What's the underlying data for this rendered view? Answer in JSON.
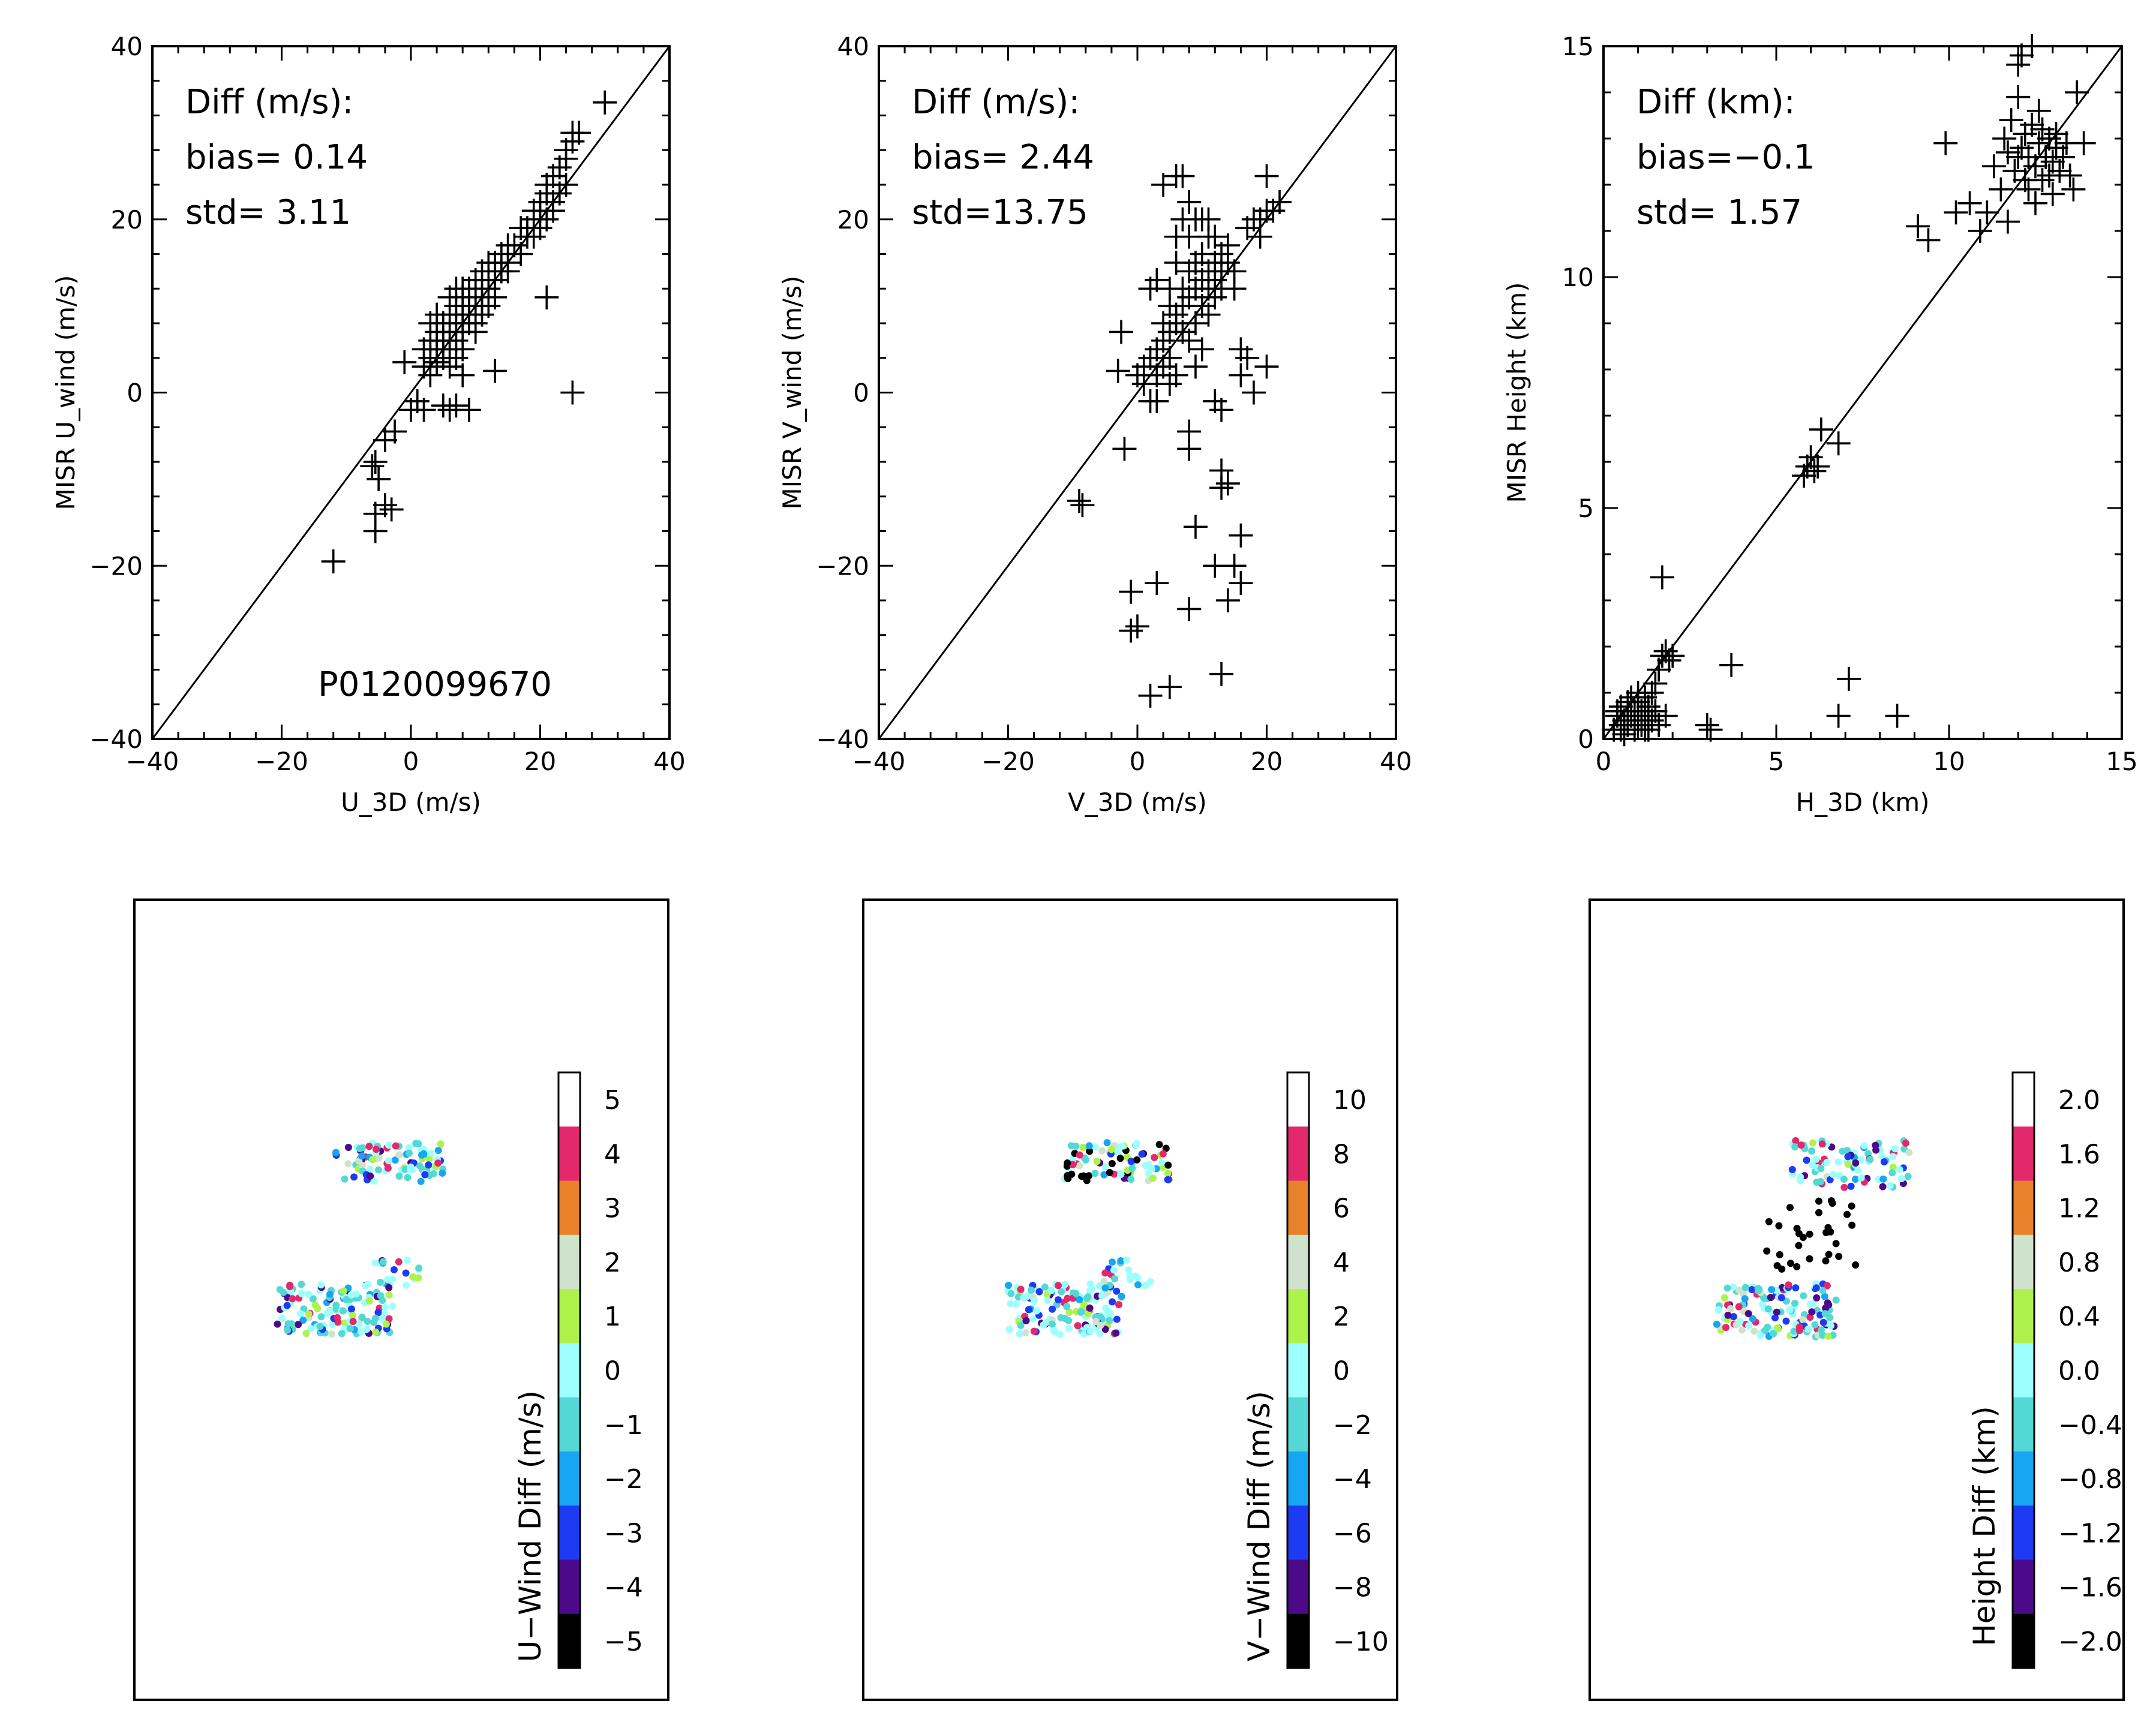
{
  "chart_data": [
    {
      "type": "scatter",
      "id": "u-wind-scatter",
      "xlabel": "U_3D (m/s)",
      "ylabel": "MISR U_wind (m/s)",
      "xlim": [
        -40,
        40
      ],
      "ylim": [
        -40,
        40
      ],
      "xticks": [
        -40,
        -20,
        0,
        20,
        40
      ],
      "yticks": [
        -40,
        -20,
        0,
        20,
        40
      ],
      "xtick_labels": [
        "−40",
        "−20",
        "0",
        "20",
        "40"
      ],
      "ytick_labels": [
        "−40",
        "−20",
        "0",
        "20",
        "40"
      ],
      "reference_line": "1:1",
      "annotations": [
        "Diff (m/s):",
        "bias= 0.14",
        "std= 3.11"
      ],
      "footer_label": "P0120099670",
      "points": [
        [
          -12,
          -19.5
        ],
        [
          -5.5,
          -16
        ],
        [
          -5.5,
          -14
        ],
        [
          -4,
          -13
        ],
        [
          -3,
          -13.5
        ],
        [
          -5,
          -10
        ],
        [
          -6,
          -8.5
        ],
        [
          -5.5,
          -8
        ],
        [
          -4,
          -5.5
        ],
        [
          -2.5,
          -4.5
        ],
        [
          -1,
          3.5
        ],
        [
          0,
          -2
        ],
        [
          1,
          -1
        ],
        [
          2,
          -2
        ],
        [
          2,
          3
        ],
        [
          3,
          2
        ],
        [
          3,
          6
        ],
        [
          3,
          5
        ],
        [
          4,
          3.5
        ],
        [
          4,
          5
        ],
        [
          4,
          7
        ],
        [
          5,
          4
        ],
        [
          5,
          6
        ],
        [
          5,
          8
        ],
        [
          5,
          -1.5
        ],
        [
          6,
          5
        ],
        [
          6,
          7
        ],
        [
          6,
          9
        ],
        [
          6,
          3
        ],
        [
          6,
          -2
        ],
        [
          7,
          6
        ],
        [
          7,
          8
        ],
        [
          7,
          10
        ],
        [
          7,
          4
        ],
        [
          7,
          -1.5
        ],
        [
          8,
          7
        ],
        [
          8,
          9
        ],
        [
          8,
          11
        ],
        [
          8,
          5
        ],
        [
          8,
          2
        ],
        [
          9,
          9
        ],
        [
          9,
          10
        ],
        [
          9,
          12
        ],
        [
          9,
          8
        ],
        [
          9,
          -2
        ],
        [
          10,
          10
        ],
        [
          10,
          11
        ],
        [
          10,
          13
        ],
        [
          10,
          8
        ],
        [
          11,
          10
        ],
        [
          11,
          12
        ],
        [
          11,
          14
        ],
        [
          12,
          12
        ],
        [
          12,
          13
        ],
        [
          12,
          10
        ],
        [
          13,
          13
        ],
        [
          13,
          15
        ],
        [
          14,
          14
        ],
        [
          14,
          16
        ],
        [
          15,
          15
        ],
        [
          15,
          14
        ],
        [
          16,
          17
        ],
        [
          17,
          16
        ],
        [
          18,
          18
        ],
        [
          18,
          19
        ],
        [
          19,
          20
        ],
        [
          19,
          21
        ],
        [
          20,
          21
        ],
        [
          20,
          22
        ],
        [
          21,
          23
        ],
        [
          21,
          24
        ],
        [
          22,
          22
        ],
        [
          22,
          25
        ],
        [
          23,
          26
        ],
        [
          24,
          27
        ],
        [
          24,
          28
        ],
        [
          25,
          29
        ],
        [
          25,
          30
        ],
        [
          26,
          30
        ],
        [
          21,
          11
        ],
        [
          13,
          2.5
        ],
        [
          25,
          0
        ],
        [
          30,
          33.5
        ],
        [
          2,
          5
        ],
        [
          4,
          9
        ],
        [
          6,
          11
        ],
        [
          3,
          8
        ],
        [
          11,
          9
        ],
        [
          12,
          15
        ],
        [
          8,
          12
        ],
        [
          7,
          12
        ],
        [
          10,
          7
        ],
        [
          13,
          11
        ],
        [
          15,
          17
        ],
        [
          17,
          19
        ],
        [
          19,
          18
        ],
        [
          20,
          19
        ],
        [
          21,
          20
        ],
        [
          22,
          21
        ],
        [
          23,
          23
        ],
        [
          24,
          24
        ],
        [
          3,
          4
        ],
        [
          5,
          5
        ],
        [
          9,
          11
        ],
        [
          10,
          12
        ],
        [
          11,
          11
        ],
        [
          4,
          6
        ],
        [
          6,
          6
        ],
        [
          8,
          8
        ]
      ]
    },
    {
      "type": "scatter",
      "id": "v-wind-scatter",
      "xlabel": "V_3D (m/s)",
      "ylabel": "MISR V_wind (m/s)",
      "xlim": [
        -40,
        40
      ],
      "ylim": [
        -40,
        40
      ],
      "xticks": [
        -40,
        -20,
        0,
        20,
        40
      ],
      "yticks": [
        -40,
        -20,
        0,
        20,
        40
      ],
      "xtick_labels": [
        "−40",
        "−20",
        "0",
        "20",
        "40"
      ],
      "ytick_labels": [
        "−40",
        "−20",
        "0",
        "20",
        "40"
      ],
      "reference_line": "1:1",
      "annotations": [
        "Diff (m/s):",
        "bias= 2.44",
        "std=13.75"
      ],
      "points": [
        [
          -9,
          -12.5
        ],
        [
          -8.5,
          -13
        ],
        [
          -2,
          -6.5
        ],
        [
          -2.5,
          7
        ],
        [
          -3,
          2.5
        ],
        [
          -1,
          -23
        ],
        [
          -1,
          -27.5
        ],
        [
          0,
          -27
        ],
        [
          3,
          -22
        ],
        [
          2,
          -35
        ],
        [
          5,
          -34
        ],
        [
          8,
          -25
        ],
        [
          13,
          -32.5
        ],
        [
          14,
          -24
        ],
        [
          16,
          -22
        ],
        [
          15,
          -20
        ],
        [
          12,
          -20
        ],
        [
          16,
          -16.5
        ],
        [
          13,
          -11
        ],
        [
          14,
          -10.5
        ],
        [
          13,
          -9
        ],
        [
          9,
          -15.5
        ],
        [
          8,
          -6.5
        ],
        [
          8,
          -4.5
        ],
        [
          12,
          -1
        ],
        [
          13,
          -2
        ],
        [
          18,
          0
        ],
        [
          17,
          4
        ],
        [
          20,
          3
        ],
        [
          16,
          5
        ],
        [
          16,
          2
        ],
        [
          0,
          2
        ],
        [
          1,
          3
        ],
        [
          1,
          1
        ],
        [
          2,
          4
        ],
        [
          2,
          -1
        ],
        [
          3,
          5
        ],
        [
          3,
          2
        ],
        [
          3,
          -1
        ],
        [
          4,
          6
        ],
        [
          4,
          8
        ],
        [
          4,
          3
        ],
        [
          5,
          7
        ],
        [
          5,
          10
        ],
        [
          5,
          12
        ],
        [
          5,
          4
        ],
        [
          6,
          8
        ],
        [
          6,
          15
        ],
        [
          6,
          18
        ],
        [
          6,
          9
        ],
        [
          7,
          10
        ],
        [
          7,
          12
        ],
        [
          7,
          20
        ],
        [
          7,
          25
        ],
        [
          7,
          7
        ],
        [
          8,
          11
        ],
        [
          8,
          14
        ],
        [
          8,
          18
        ],
        [
          8,
          22
        ],
        [
          8,
          6
        ],
        [
          9,
          12
        ],
        [
          9,
          15
        ],
        [
          9,
          8
        ],
        [
          9,
          3
        ],
        [
          10,
          13
        ],
        [
          10,
          16
        ],
        [
          10,
          10
        ],
        [
          10,
          5
        ],
        [
          11,
          12
        ],
        [
          11,
          14
        ],
        [
          11,
          18
        ],
        [
          11,
          9
        ],
        [
          12,
          15
        ],
        [
          12,
          11
        ],
        [
          12,
          13
        ],
        [
          13,
          14
        ],
        [
          13,
          16
        ],
        [
          13,
          12
        ],
        [
          14,
          15
        ],
        [
          14,
          17
        ],
        [
          15,
          14
        ],
        [
          15,
          12
        ],
        [
          17,
          19
        ],
        [
          18,
          20
        ],
        [
          19,
          20
        ],
        [
          20,
          25
        ],
        [
          21,
          21
        ],
        [
          22,
          22
        ],
        [
          19,
          18
        ],
        [
          20,
          21
        ],
        [
          4,
          24
        ],
        [
          6,
          25
        ],
        [
          3,
          13
        ],
        [
          2,
          12
        ],
        [
          5,
          1
        ],
        [
          6,
          2
        ],
        [
          10,
          20
        ],
        [
          12,
          18
        ],
        [
          11,
          20
        ],
        [
          9,
          20
        ]
      ]
    },
    {
      "type": "scatter",
      "id": "height-scatter",
      "xlabel": "H_3D (km)",
      "ylabel": "MISR Height (km)",
      "xlim": [
        0,
        15
      ],
      "ylim": [
        0,
        15
      ],
      "xticks": [
        0,
        5,
        10,
        15
      ],
      "yticks": [
        0,
        5,
        10,
        15
      ],
      "xtick_labels": [
        "0",
        "5",
        "10",
        "15"
      ],
      "ytick_labels": [
        "0",
        "5",
        "10",
        "15"
      ],
      "reference_line": "1:1",
      "annotations": [
        "Diff (km):",
        "bias=−0.1",
        "std= 1.57"
      ],
      "points": [
        [
          0.3,
          0.2
        ],
        [
          0.4,
          0.5
        ],
        [
          0.5,
          0.3
        ],
        [
          0.5,
          0.7
        ],
        [
          0.6,
          0.4
        ],
        [
          0.6,
          0.1
        ],
        [
          0.7,
          0.6
        ],
        [
          0.7,
          0.3
        ],
        [
          0.8,
          0.5
        ],
        [
          0.8,
          0.9
        ],
        [
          0.9,
          0.2
        ],
        [
          0.9,
          0.6
        ],
        [
          1.0,
          0.4
        ],
        [
          1.0,
          0.8
        ],
        [
          1.1,
          0.3
        ],
        [
          1.1,
          0.6
        ],
        [
          1.2,
          0.5
        ],
        [
          1.2,
          0.9
        ],
        [
          1.3,
          0.2
        ],
        [
          1.3,
          0.7
        ],
        [
          1.4,
          1.0
        ],
        [
          1.4,
          0.4
        ],
        [
          1.5,
          1.2
        ],
        [
          1.5,
          0.6
        ],
        [
          1.6,
          1.5
        ],
        [
          1.6,
          0.3
        ],
        [
          1.7,
          1.8
        ],
        [
          1.8,
          1.9
        ],
        [
          1.8,
          0.5
        ],
        [
          1.9,
          1.7
        ],
        [
          1.7,
          3.5
        ],
        [
          2.0,
          1.8
        ],
        [
          0.4,
          0.6
        ],
        [
          0.5,
          0.2
        ],
        [
          0.7,
          0.8
        ],
        [
          1.0,
          1.0
        ],
        [
          1.2,
          0.2
        ],
        [
          3.0,
          0.3
        ],
        [
          3.1,
          0.2
        ],
        [
          3.7,
          1.6
        ],
        [
          5.8,
          5.7
        ],
        [
          5.9,
          5.9
        ],
        [
          6.0,
          6.1
        ],
        [
          6.1,
          5.8
        ],
        [
          6.2,
          5.9
        ],
        [
          6.3,
          6.7
        ],
        [
          6.8,
          6.4
        ],
        [
          6.8,
          0.5
        ],
        [
          7.1,
          1.3
        ],
        [
          8.5,
          0.5
        ],
        [
          9.1,
          11.1
        ],
        [
          9.4,
          10.8
        ],
        [
          9.9,
          12.9
        ],
        [
          10.2,
          11.4
        ],
        [
          10.6,
          11.6
        ],
        [
          10.9,
          11.0
        ],
        [
          11.1,
          11.4
        ],
        [
          11.3,
          12.4
        ],
        [
          11.5,
          11.9
        ],
        [
          11.7,
          11.2
        ],
        [
          11.7,
          12.7
        ],
        [
          11.8,
          13.4
        ],
        [
          11.9,
          12.3
        ],
        [
          12.0,
          13.9
        ],
        [
          12.0,
          14.6
        ],
        [
          12.1,
          12.8
        ],
        [
          12.1,
          14.8
        ],
        [
          12.2,
          12.1
        ],
        [
          12.2,
          13.1
        ],
        [
          12.3,
          11.9
        ],
        [
          12.3,
          12.6
        ],
        [
          12.4,
          13.3
        ],
        [
          12.4,
          15.0
        ],
        [
          12.5,
          12.4
        ],
        [
          12.5,
          11.6
        ],
        [
          12.6,
          12.9
        ],
        [
          12.7,
          13.2
        ],
        [
          12.7,
          12.1
        ],
        [
          12.8,
          12.6
        ],
        [
          12.9,
          13.0
        ],
        [
          12.9,
          12.2
        ],
        [
          13.0,
          12.5
        ],
        [
          13.0,
          11.8
        ],
        [
          13.1,
          13.1
        ],
        [
          13.1,
          12.8
        ],
        [
          13.2,
          12.3
        ],
        [
          13.3,
          12.6
        ],
        [
          13.4,
          12.9
        ],
        [
          13.5,
          12.2
        ],
        [
          13.6,
          11.9
        ],
        [
          13.7,
          14.0
        ],
        [
          13.9,
          12.9
        ],
        [
          12.6,
          13.6
        ],
        [
          12.0,
          12.6
        ],
        [
          11.6,
          13.0
        ]
      ]
    },
    {
      "type": "heatmap",
      "id": "u-wind-map",
      "colorbar_label": "U−Wind Diff (m/s)",
      "colorbar_ticks": [
        "5",
        "4",
        "3",
        "2",
        "1",
        "0",
        "−1",
        "−2",
        "−3",
        "−4",
        "−5"
      ],
      "colorbar_colors": [
        "#ffffff",
        "#e3286b",
        "#e8822a",
        "#cfe3cc",
        "#aef24c",
        "#9effff",
        "#54d8d6",
        "#16a6f2",
        "#1d3bf2",
        "#4c0a8a",
        "#000000"
      ]
    },
    {
      "type": "heatmap",
      "id": "v-wind-map",
      "colorbar_label": "V−Wind Diff (m/s)",
      "colorbar_ticks": [
        "10",
        "8",
        "6",
        "4",
        "2",
        "0",
        "−2",
        "−4",
        "−6",
        "−8",
        "−10"
      ],
      "colorbar_colors": [
        "#ffffff",
        "#e3286b",
        "#e8822a",
        "#cfe3cc",
        "#aef24c",
        "#9effff",
        "#54d8d6",
        "#16a6f2",
        "#1d3bf2",
        "#4c0a8a",
        "#000000"
      ]
    },
    {
      "type": "heatmap",
      "id": "height-map",
      "colorbar_label": "Height Diff (km)",
      "colorbar_ticks": [
        "2.0",
        "1.6",
        "1.2",
        "0.8",
        "0.4",
        "0.0",
        "−0.4",
        "−0.8",
        "−1.2",
        "−1.6",
        "−2.0"
      ],
      "colorbar_colors": [
        "#ffffff",
        "#e3286b",
        "#e8822a",
        "#cfe3cc",
        "#aef24c",
        "#9effff",
        "#54d8d6",
        "#16a6f2",
        "#1d3bf2",
        "#4c0a8a",
        "#000000"
      ]
    }
  ]
}
